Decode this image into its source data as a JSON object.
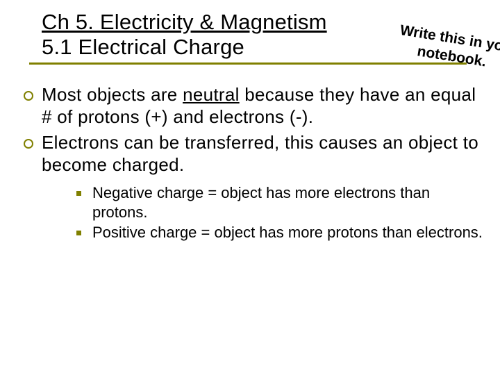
{
  "title": {
    "line1": "Ch 5. Electricity & Magnetism",
    "line2": "5.1 Electrical Charge",
    "font_size": 31,
    "underline_color": "#808000"
  },
  "annotation": {
    "text": "Write this in your\n     notebook.",
    "font_family": "Comic Sans MS",
    "font_size": 21,
    "color": "#000000",
    "rotation_deg": 9
  },
  "bullets": [
    {
      "pre": "Most objects are ",
      "underlined": "neutral",
      "post": " because they have an equal # of protons (+) and electrons (-)."
    },
    {
      "pre": "Electrons can be transferred, this causes an object to become charged.",
      "underlined": "",
      "post": ""
    }
  ],
  "sub_bullets": [
    "Negative charge = object has more electrons than protons.",
    "Positive charge = object has more protons than electrons."
  ],
  "styles": {
    "ring_color": "#808000",
    "dot_color": "#808000",
    "body_font_size": 26,
    "sub_font_size": 22,
    "background": "#ffffff",
    "text_color": "#000000"
  }
}
